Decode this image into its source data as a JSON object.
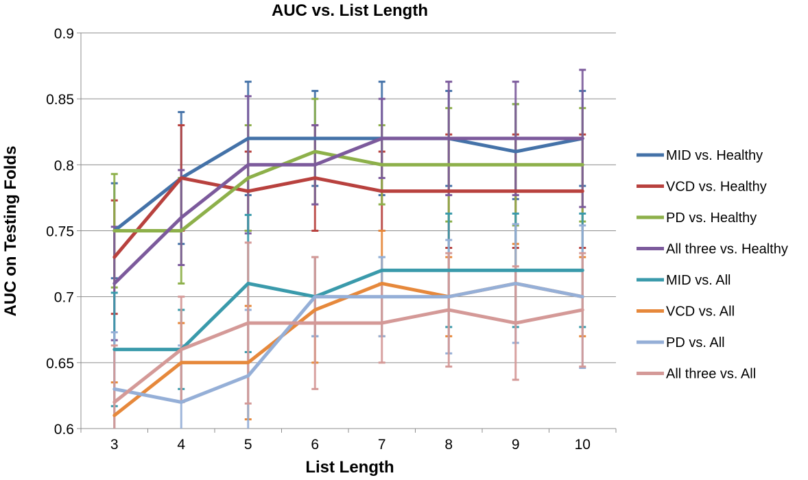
{
  "chart_data": {
    "type": "line",
    "title": "AUC vs. List Length",
    "xlabel": "List Length",
    "ylabel": "AUC on Testing Folds",
    "x": [
      3,
      4,
      5,
      6,
      7,
      8,
      9,
      10
    ],
    "ylim": [
      0.6,
      0.9
    ],
    "yticks": [
      "0.6",
      "0.65",
      "0.7",
      "0.75",
      "0.8",
      "0.85",
      "0.9"
    ],
    "grid": "horizontal",
    "legend_position": "right",
    "series": [
      {
        "name": "MID vs. Healthy",
        "color": "#4472A8",
        "values": [
          0.75,
          0.79,
          0.82,
          0.82,
          0.82,
          0.82,
          0.81,
          0.82
        ],
        "errors": [
          0.036,
          0.05,
          0.043,
          0.036,
          0.043,
          0.036,
          0.036,
          0.036
        ]
      },
      {
        "name": "VCD vs. Healthy",
        "color": "#B8413E",
        "values": [
          0.73,
          0.79,
          0.78,
          0.79,
          0.78,
          0.78,
          0.78,
          0.78
        ],
        "errors": [
          0.043,
          0.04,
          0.03,
          0.04,
          0.03,
          0.043,
          0.043,
          0.043
        ]
      },
      {
        "name": "PD vs. Healthy",
        "color": "#8DB04A",
        "values": [
          0.75,
          0.75,
          0.79,
          0.81,
          0.8,
          0.8,
          0.8,
          0.8
        ],
        "errors": [
          0.043,
          0.04,
          0.04,
          0.04,
          0.03,
          0.043,
          0.046,
          0.043
        ]
      },
      {
        "name": "All three vs. Healthy",
        "color": "#7C5A9C",
        "values": [
          0.71,
          0.76,
          0.8,
          0.8,
          0.82,
          0.82,
          0.82,
          0.82
        ],
        "errors": [
          0.043,
          0.036,
          0.052,
          0.03,
          0.03,
          0.043,
          0.043,
          0.052
        ]
      },
      {
        "name": "MID vs. All",
        "color": "#3A9AAB",
        "values": [
          0.66,
          0.66,
          0.71,
          0.7,
          0.72,
          0.72,
          0.72,
          0.72
        ],
        "errors": [
          0.043,
          0.03,
          0.052,
          0.03,
          0.01,
          0.043,
          0.043,
          0.043
        ]
      },
      {
        "name": "VCD vs. All",
        "color": "#E6883B",
        "values": [
          0.61,
          0.65,
          0.65,
          0.69,
          0.71,
          0.7,
          0.71,
          0.7
        ],
        "errors": [
          0.025,
          0.03,
          0.043,
          0.04,
          0.04,
          0.03,
          0.03,
          0.03
        ]
      },
      {
        "name": "PD vs. All",
        "color": "#95AFD7",
        "values": [
          0.63,
          0.62,
          0.64,
          0.7,
          0.7,
          0.7,
          0.71,
          0.7
        ],
        "errors": [
          0.043,
          0.043,
          0.05,
          0.03,
          0.03,
          0.043,
          0.045,
          0.054
        ]
      },
      {
        "name": "All three vs. All",
        "color": "#D49997",
        "values": [
          0.62,
          0.66,
          0.68,
          0.68,
          0.68,
          0.69,
          0.68,
          0.69
        ],
        "errors": [
          0.043,
          0.04,
          0.061,
          0.05,
          0.03,
          0.043,
          0.043,
          0.043
        ]
      }
    ]
  }
}
